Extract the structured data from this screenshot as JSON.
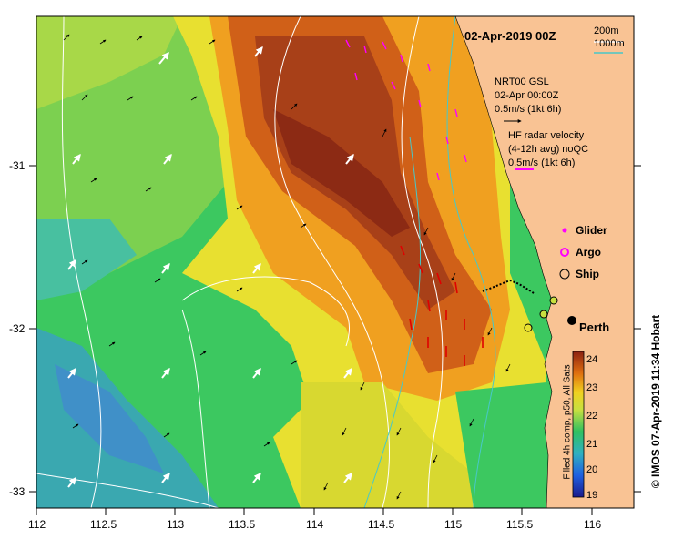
{
  "title": "02-Apr-2019 00Z",
  "scale": {
    "a": "200m",
    "b": "1000m"
  },
  "nrt": {
    "line1": "NRT00 GSL",
    "line2": "02-Apr 00:00Z",
    "speed": "0.5m/s (1kt 6h)"
  },
  "hf": {
    "line1": "HF radar velocity",
    "line2": "(4-12h avg) noQC",
    "speed": "0.5m/s (1kt 6h)"
  },
  "legend": {
    "glider": "Glider",
    "argo": "Argo",
    "ship": "Ship"
  },
  "city": "Perth",
  "colorbar": {
    "label": "Filled 4h comp, p50, All Sats",
    "ticks": [
      "24",
      "23",
      "22",
      "21",
      "20",
      "19"
    ]
  },
  "x_ticks": [
    "112",
    "112.5",
    "113",
    "113.5",
    "114",
    "114.5",
    "115",
    "115.5",
    "116"
  ],
  "y_ticks": [
    "-31",
    "-32",
    "-33"
  ],
  "credit": "© IMOS 07-Apr-2019 11:34 Hobart",
  "colors": {
    "land": "#f9c394",
    "glider": "#ff00ff",
    "hf_arrow": "#ff00ff",
    "contour_shelf": "#48c8c8",
    "contour_deep": "#ffffff"
  }
}
